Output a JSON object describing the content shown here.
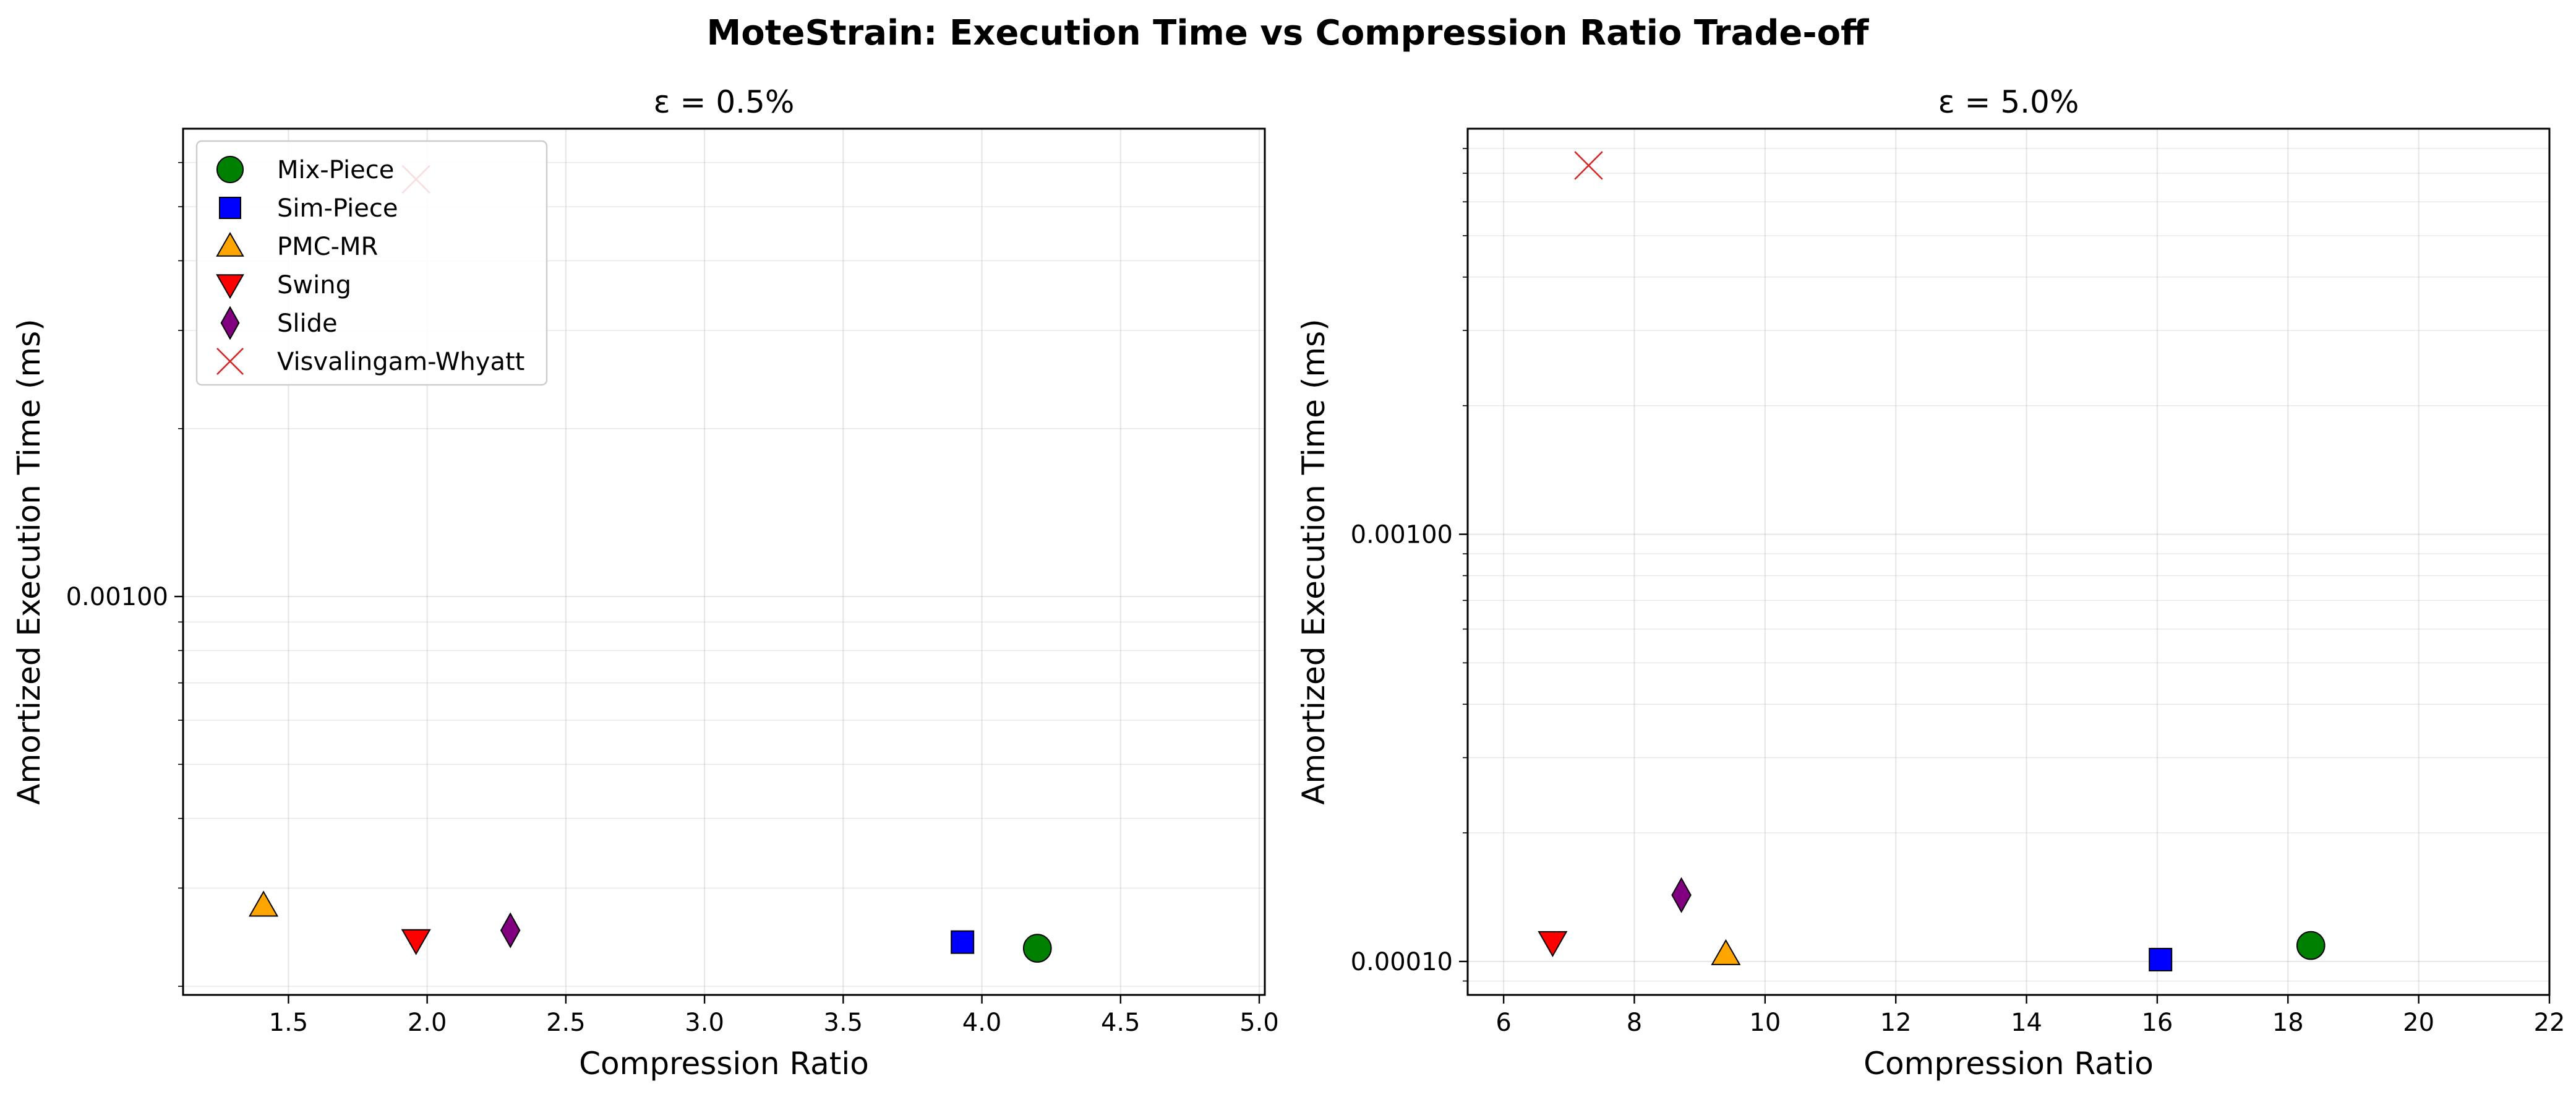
{
  "suptitle": "MoteStrain: Execution Time vs Compression Ratio Trade-off",
  "methods": [
    {
      "name": "Mix-Piece",
      "marker": "circle",
      "color": "#008000"
    },
    {
      "name": "Sim-Piece",
      "marker": "square",
      "color": "#0000ff"
    },
    {
      "name": "PMC-MR",
      "marker": "triangle-up",
      "color": "#ffa500"
    },
    {
      "name": "Swing",
      "marker": "triangle-down",
      "color": "#ff0000"
    },
    {
      "name": "Slide",
      "marker": "diamond",
      "color": "#800080"
    },
    {
      "name": "Visvalingam-Whyatt",
      "marker": "x",
      "color": "#d62728"
    }
  ],
  "chart_data": [
    {
      "type": "scatter",
      "title": "ε = 0.5%",
      "xlabel": "Compression Ratio",
      "ylabel": "Amortized Execution Time (ms)",
      "xlim": [
        1.12,
        5.02
      ],
      "ylim": [
        0.000193,
        0.0069
      ],
      "yscale": "log",
      "xticks": [
        1.5,
        2.0,
        2.5,
        3.0,
        3.5,
        4.0,
        4.5,
        5.0
      ],
      "xtick_labels": [
        "1.5",
        "2.0",
        "2.5",
        "3.0",
        "3.5",
        "4.0",
        "4.5",
        "5.0"
      ],
      "yticks": [
        0.001
      ],
      "ytick_labels": [
        "0.00100"
      ],
      "grid": true,
      "legend": "upper-left",
      "points": [
        {
          "series": "Mix-Piece",
          "x": 4.2,
          "y": 0.000234
        },
        {
          "series": "Sim-Piece",
          "x": 3.93,
          "y": 0.00024
        },
        {
          "series": "PMC-MR",
          "x": 1.41,
          "y": 0.000279
        },
        {
          "series": "Swing",
          "x": 1.96,
          "y": 0.000242
        },
        {
          "series": "Slide",
          "x": 2.3,
          "y": 0.000252
        },
        {
          "series": "Visvalingam-Whyatt",
          "x": 1.96,
          "y": 0.0056
        }
      ]
    },
    {
      "type": "scatter",
      "title": "ε = 5.0%",
      "xlabel": "Compression Ratio",
      "ylabel": "Amortized Execution Time (ms)",
      "xlim": [
        5.45,
        22.0
      ],
      "ylim": [
        8.35e-05,
        0.0089
      ],
      "yscale": "log",
      "xticks": [
        6,
        8,
        10,
        12,
        14,
        16,
        18,
        20,
        22
      ],
      "xtick_labels": [
        "6",
        "8",
        "10",
        "12",
        "14",
        "16",
        "18",
        "20",
        "22"
      ],
      "yticks": [
        0.0001,
        0.001
      ],
      "ytick_labels": [
        "0.00010",
        "0.00100"
      ],
      "grid": true,
      "legend": "none",
      "points": [
        {
          "series": "Mix-Piece",
          "x": 18.35,
          "y": 0.000109
        },
        {
          "series": "Sim-Piece",
          "x": 16.05,
          "y": 0.000101
        },
        {
          "series": "PMC-MR",
          "x": 9.4,
          "y": 0.000104
        },
        {
          "series": "Swing",
          "x": 6.75,
          "y": 0.000111
        },
        {
          "series": "Slide",
          "x": 8.72,
          "y": 0.000143
        },
        {
          "series": "Visvalingam-Whyatt",
          "x": 7.3,
          "y": 0.0073
        }
      ]
    }
  ]
}
